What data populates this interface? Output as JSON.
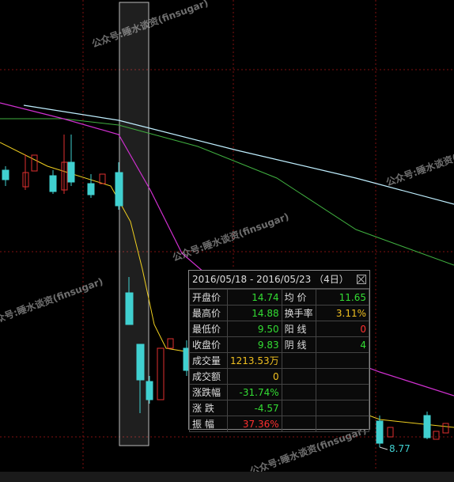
{
  "watermark": "公众号:睡水谈资(finsugar)",
  "price_label": "8.77",
  "popup": {
    "title": "2016/05/18 - 2016/05/23 （4日）",
    "rows": [
      [
        "开盘价",
        "14.74",
        "均 价",
        "11.65"
      ],
      [
        "最高价",
        "14.88",
        "换手率",
        "3.11%"
      ],
      [
        "最低价",
        "9.50",
        "阳 线",
        "0"
      ],
      [
        "收盘价",
        "9.83",
        "阴 线",
        "4"
      ],
      [
        "成交量",
        "1213.53万"
      ],
      [
        "成交额",
        "0"
      ],
      [
        "涨跌幅",
        "-31.74%"
      ],
      [
        "涨 跌",
        "-4.57"
      ],
      [
        "振 幅",
        "37.36%"
      ]
    ]
  }
}
